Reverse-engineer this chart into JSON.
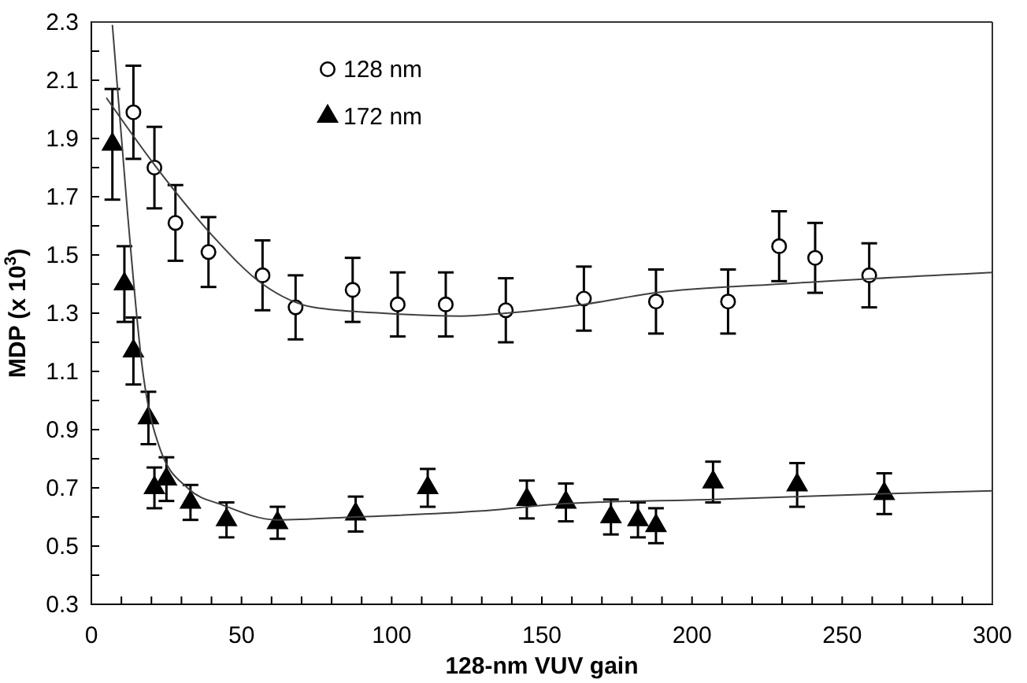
{
  "chart_data": {
    "type": "scatter",
    "xlabel": "128-nm VUV gain",
    "ylabel": "MDP (x 10$^{3}$)",
    "xlim": [
      0,
      300
    ],
    "xticks": [
      0,
      {
        "value": 10,
        "label": null
      },
      {
        "value": 20,
        "label": null
      },
      {
        "value": 30,
        "label": null
      },
      {
        "value": 40,
        "label": null
      },
      50,
      {
        "value": 60,
        "label": null
      },
      {
        "value": 70,
        "label": null
      },
      {
        "value": 80,
        "label": null
      },
      {
        "value": 90,
        "label": null
      },
      100,
      {
        "value": 110,
        "label": null
      },
      {
        "value": 120,
        "label": null
      },
      {
        "value": 130,
        "label": null
      },
      {
        "value": 140,
        "label": null
      },
      150,
      {
        "value": 160,
        "label": null
      },
      {
        "value": 170,
        "label": null
      },
      {
        "value": 180,
        "label": null
      },
      {
        "value": 190,
        "label": null
      },
      200,
      {
        "value": 210,
        "label": null
      },
      {
        "value": 220,
        "label": null
      },
      {
        "value": 230,
        "label": null
      },
      {
        "value": 240,
        "label": null
      },
      250,
      {
        "value": 260,
        "label": null
      },
      {
        "value": 270,
        "label": null
      },
      {
        "value": 280,
        "label": null
      },
      {
        "value": 290,
        "label": null
      },
      300
    ],
    "ylim": [
      0.3,
      2.3
    ],
    "yticks": [
      {
        "value": 0.3,
        "label": "0.3"
      },
      {
        "value": 0.4,
        "label": null
      },
      {
        "value": 0.5,
        "label": "0.5"
      },
      {
        "value": 0.6,
        "label": null
      },
      {
        "value": 0.7,
        "label": "0.7"
      },
      {
        "value": 0.8,
        "label": null
      },
      {
        "value": 0.9,
        "label": "0.9"
      },
      {
        "value": 1.0,
        "label": null
      },
      {
        "value": 1.1,
        "label": "1.1"
      },
      {
        "value": 1.2,
        "label": null
      },
      {
        "value": 1.3,
        "label": "1.3"
      },
      {
        "value": 1.4,
        "label": null
      },
      {
        "value": 1.5,
        "label": "1.5"
      },
      {
        "value": 1.6,
        "label": null
      },
      {
        "value": 1.7,
        "label": "1.7"
      },
      {
        "value": 1.8,
        "label": null
      },
      {
        "value": 1.9,
        "label": "1.9"
      },
      {
        "value": 2.0,
        "label": null
      },
      {
        "value": 2.1,
        "label": "2.1"
      },
      {
        "value": 2.2,
        "label": null
      },
      {
        "value": 2.3,
        "label": "2.3"
      }
    ],
    "grid": false,
    "legend": "top left",
    "series": [
      {
        "name": "128 nm",
        "marker": "circle",
        "color": "#000000",
        "x": [
          14,
          21,
          28,
          39,
          57,
          68,
          87,
          102,
          118,
          138,
          164,
          188,
          212,
          229,
          241,
          259
        ],
        "values": [
          1.99,
          1.8,
          1.61,
          1.51,
          1.43,
          1.32,
          1.38,
          1.33,
          1.33,
          1.31,
          1.35,
          1.34,
          1.34,
          1.53,
          1.49,
          1.43
        ],
        "errors": [
          0.16,
          0.14,
          0.13,
          0.12,
          0.12,
          0.11,
          0.11,
          0.11,
          0.11,
          0.11,
          0.11,
          0.11,
          0.11,
          0.12,
          0.12,
          0.11
        ]
      },
      {
        "name": "172 nm",
        "marker": "triangle",
        "color": "#000000",
        "x": [
          7,
          11,
          14,
          19,
          21,
          25,
          33,
          45,
          62,
          88,
          112,
          145,
          158,
          173,
          182,
          188,
          207,
          235,
          264
        ],
        "values": [
          1.88,
          1.4,
          1.17,
          0.94,
          0.7,
          0.73,
          0.65,
          0.59,
          0.58,
          0.61,
          0.7,
          0.66,
          0.65,
          0.6,
          0.59,
          0.57,
          0.72,
          0.71,
          0.68
        ],
        "errors": [
          0.19,
          0.13,
          0.115,
          0.09,
          0.07,
          0.075,
          0.06,
          0.06,
          0.055,
          0.06,
          0.065,
          0.065,
          0.065,
          0.06,
          0.06,
          0.06,
          0.07,
          0.075,
          0.07
        ]
      },
      {
        "type": "line",
        "marker": "none",
        "color": "#404040",
        "x": [
          5,
          21,
          40,
          57,
          74,
          97,
          123,
          138,
          164,
          188,
          229,
          300
        ],
        "values": [
          2.04,
          1.81,
          1.57,
          1.4,
          1.32,
          1.3,
          1.29,
          1.3,
          1.33,
          1.37,
          1.4,
          1.44
        ]
      },
      {
        "type": "line",
        "marker": "none",
        "color": "#404040",
        "x": [
          7,
          12,
          17,
          23,
          32,
          44,
          62,
          88,
          129,
          158,
          207,
          264,
          300
        ],
        "values": [
          2.29,
          1.65,
          1.11,
          0.83,
          0.7,
          0.64,
          0.59,
          0.6,
          0.62,
          0.646,
          0.66,
          0.68,
          0.69
        ]
      }
    ]
  }
}
